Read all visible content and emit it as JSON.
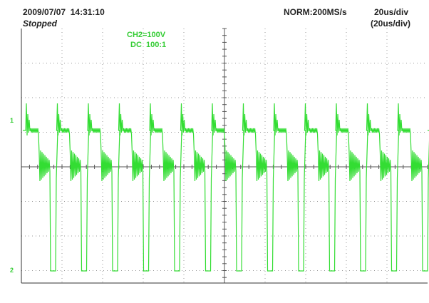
{
  "header": {
    "timestamp": "2009/07/07  14:31:10",
    "status": "Stopped",
    "mode": "NORM:200MS/s",
    "timebase": "20us/div",
    "timebase_sub": "(20us/div)"
  },
  "channel": {
    "scale": "CH2=100V",
    "coupling": "DC  100:1"
  },
  "markers": {
    "ch1": "1",
    "ch2": "2"
  }
}
